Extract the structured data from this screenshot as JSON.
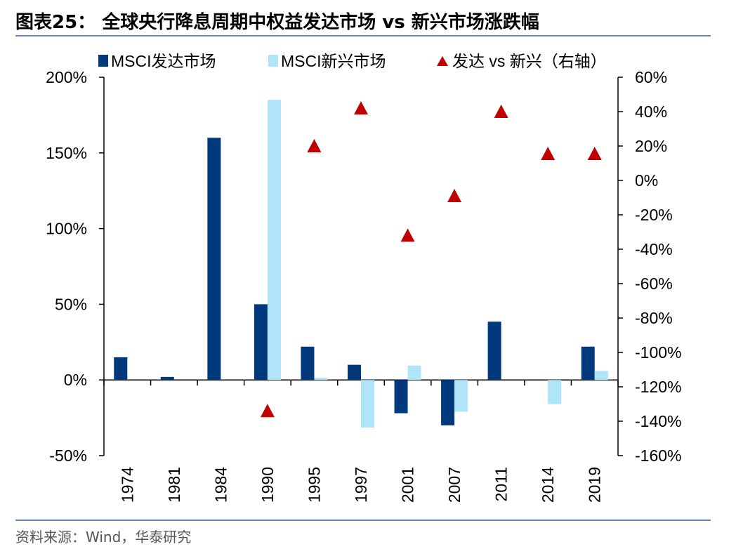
{
  "title": "图表25：  全球央行降息周期中权益发达市场 vs 新兴市场涨跌幅",
  "source": "资料来源：Wind，华泰研究",
  "colors": {
    "developed": "#003A7D",
    "emerging": "#B0E4F8",
    "diff": "#C00000",
    "rule": "#6D8BB5"
  },
  "chart_data": {
    "type": "bar",
    "categories": [
      "1974",
      "1981",
      "1984",
      "1990",
      "1995",
      "1997",
      "2001",
      "2007",
      "2011",
      "2014",
      "2019"
    ],
    "series": [
      {
        "name": "MSCI发达市场",
        "type": "bar",
        "axis": "left",
        "values": [
          15,
          2,
          160,
          50,
          22,
          10,
          -22,
          -30,
          38.5,
          null,
          22
        ]
      },
      {
        "name": "MSCI新兴市场",
        "type": "bar",
        "axis": "left",
        "values": [
          null,
          null,
          null,
          185,
          1.5,
          -31.5,
          9.5,
          -21,
          null,
          -16,
          6
        ]
      },
      {
        "name": "发达 vs 新兴（右轴）",
        "type": "scatter",
        "marker": "triangle",
        "axis": "right",
        "values": [
          null,
          null,
          null,
          -134,
          20,
          42,
          -32,
          -9,
          40,
          15.5,
          15.5
        ]
      }
    ],
    "left_axis": {
      "ylim": [
        -50,
        200
      ],
      "ticks": [
        "-50%",
        "0%",
        "50%",
        "100%",
        "150%",
        "200%"
      ]
    },
    "right_axis": {
      "ylim": [
        -160,
        60
      ],
      "ticks": [
        "-160%",
        "-140%",
        "-120%",
        "-100%",
        "-80%",
        "-60%",
        "-40%",
        "-20%",
        "0%",
        "20%",
        "40%",
        "60%"
      ]
    },
    "legend": "top",
    "grid": false
  }
}
